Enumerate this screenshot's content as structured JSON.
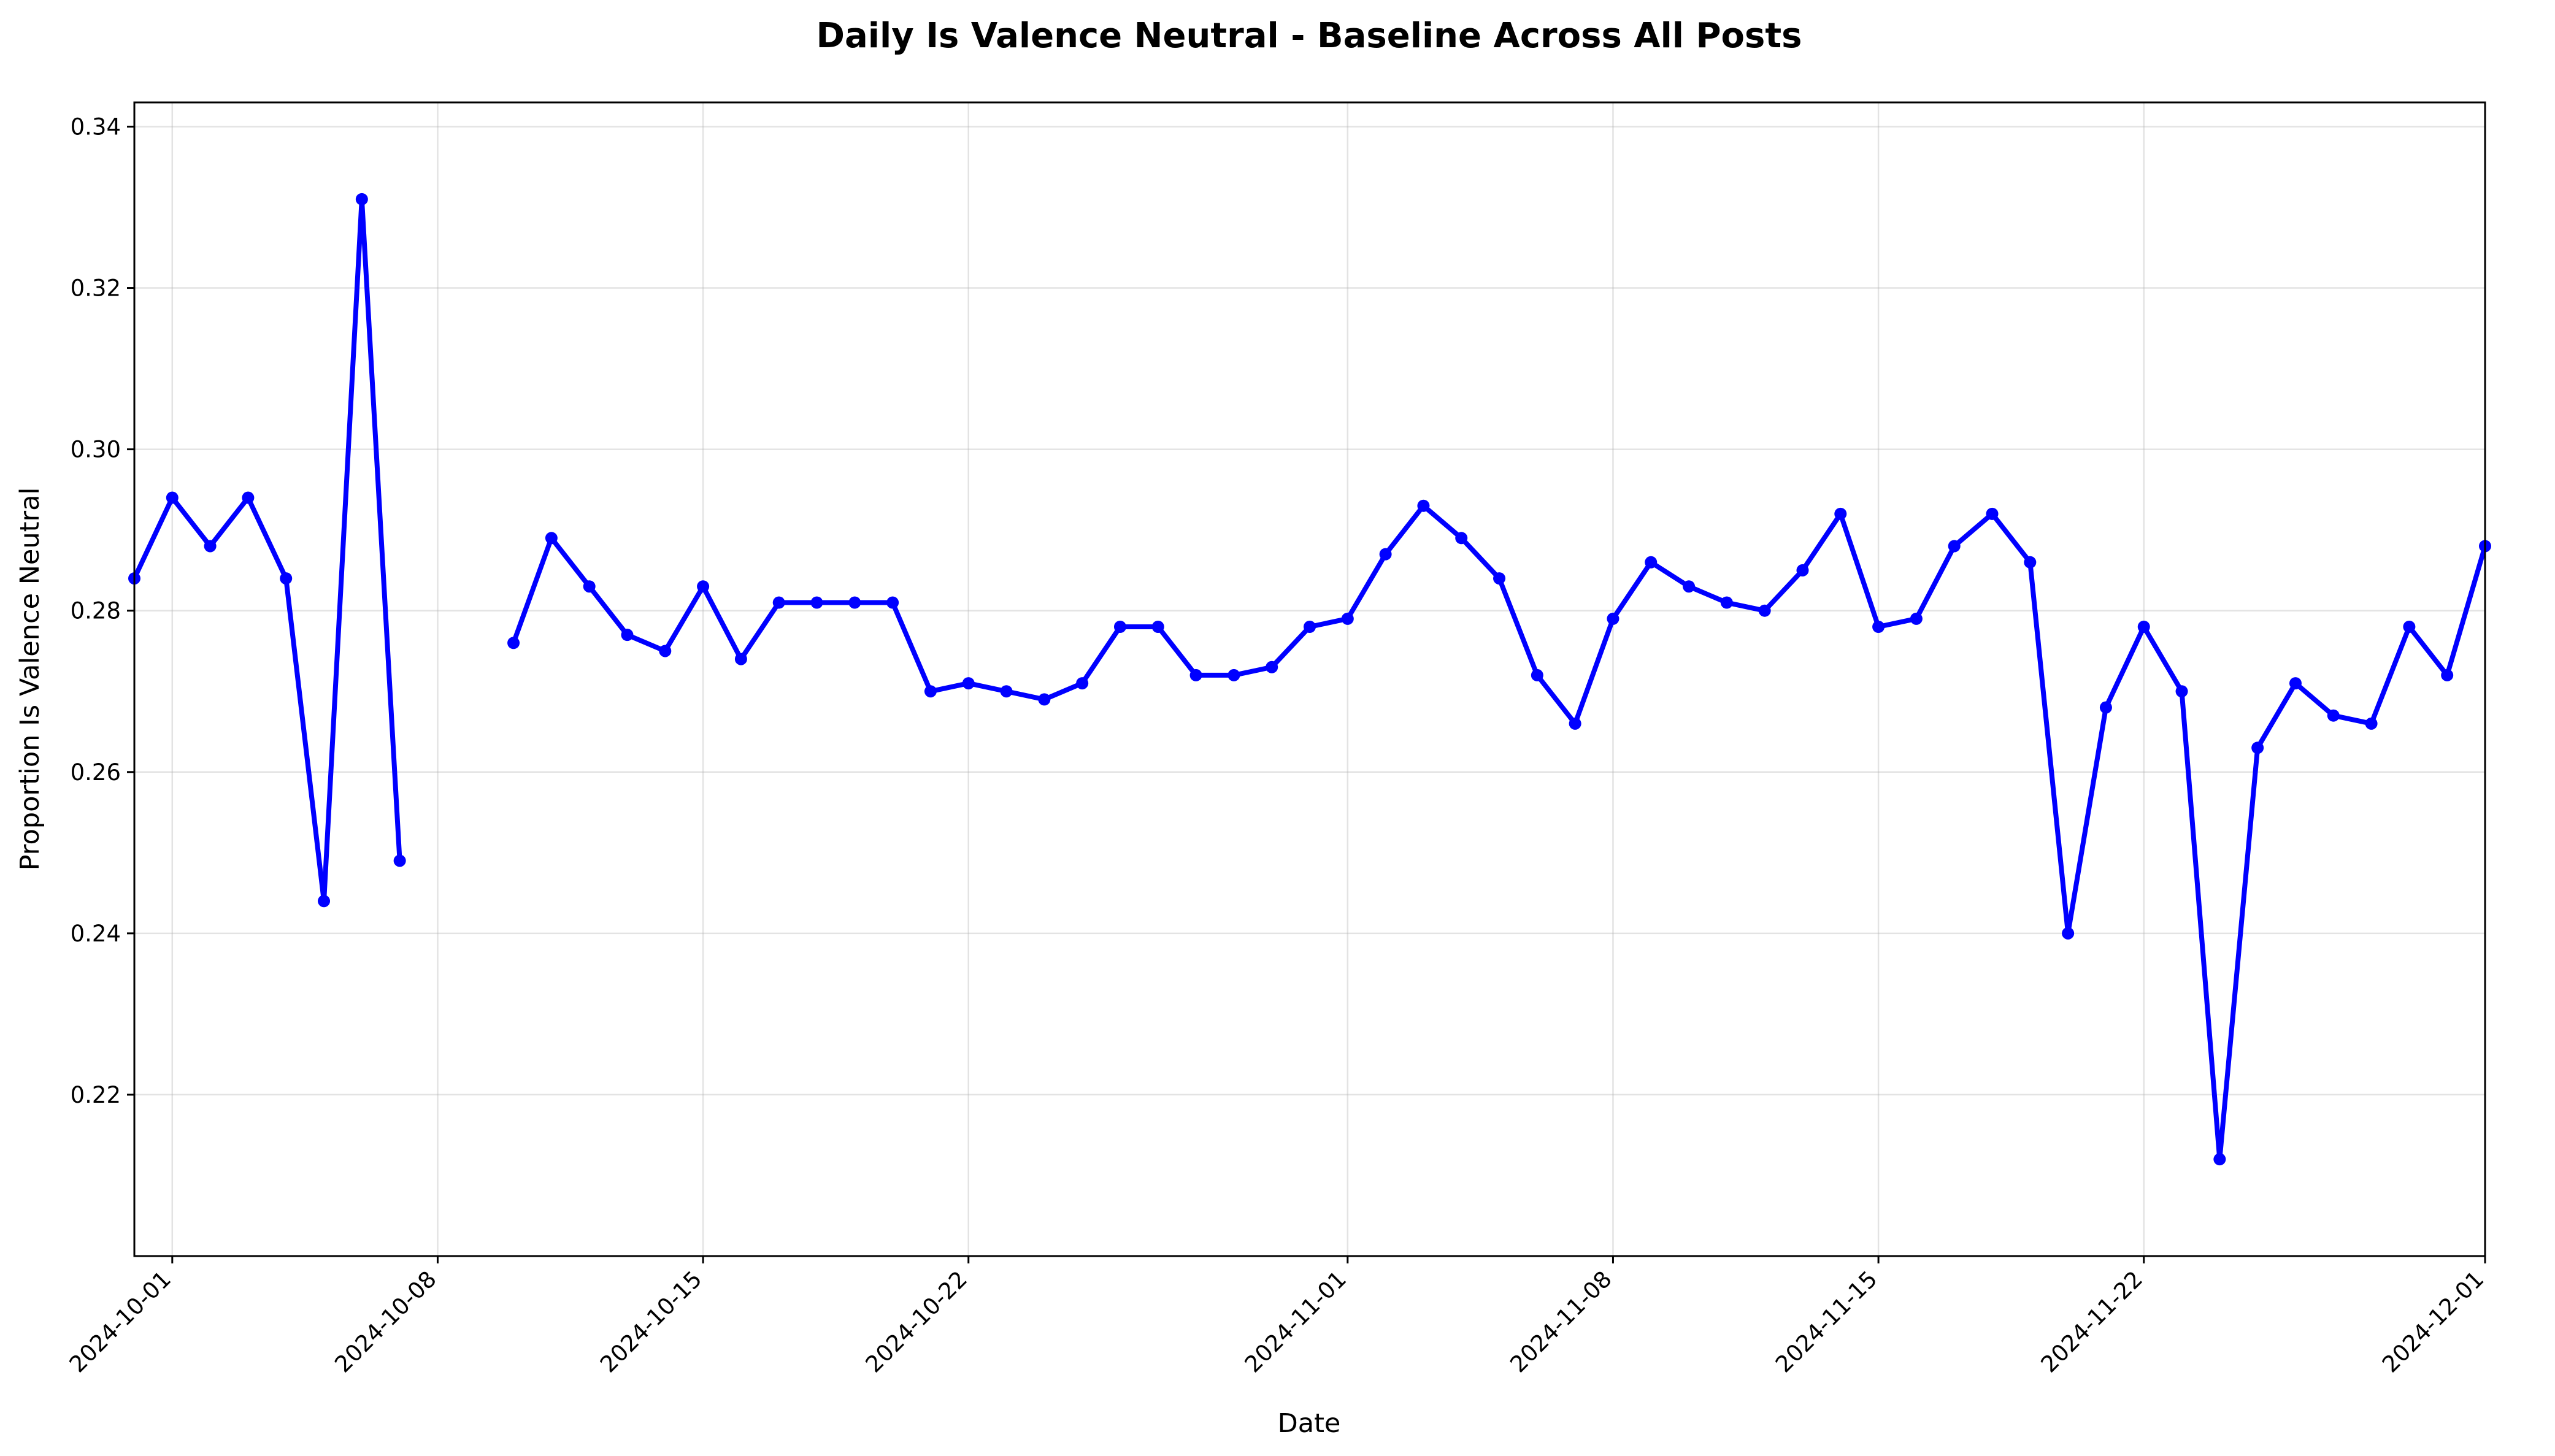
{
  "chart_data": {
    "type": "line",
    "title": "Daily Is Valence Neutral - Baseline Across All Posts",
    "xlabel": "Date",
    "ylabel": "Proportion Is Valence Neutral",
    "x_range": [
      "2024-09-30",
      "2024-12-01"
    ],
    "ylim": [
      0.2,
      0.343
    ],
    "grid": true,
    "line_color": "#0000ff",
    "x_ticks": [
      "2024-10-01",
      "2024-10-08",
      "2024-10-15",
      "2024-10-22",
      "2024-11-01",
      "2024-11-08",
      "2024-11-15",
      "2024-11-22",
      "2024-12-01"
    ],
    "y_ticks": [
      "0.22",
      "0.24",
      "0.26",
      "0.28",
      "0.30",
      "0.32",
      "0.34"
    ],
    "series": [
      {
        "x": [
          "2024-09-30",
          "2024-10-01",
          "2024-10-02",
          "2024-10-03",
          "2024-10-04",
          "2024-10-05",
          "2024-10-06",
          "2024-10-07",
          "2024-10-08",
          "2024-10-09",
          "2024-10-10",
          "2024-10-11",
          "2024-10-12",
          "2024-10-13",
          "2024-10-14",
          "2024-10-15",
          "2024-10-16",
          "2024-10-17",
          "2024-10-18",
          "2024-10-19",
          "2024-10-20",
          "2024-10-21",
          "2024-10-22",
          "2024-10-23",
          "2024-10-24",
          "2024-10-25",
          "2024-10-26",
          "2024-10-27",
          "2024-10-28",
          "2024-10-29",
          "2024-10-30",
          "2024-10-31",
          "2024-11-01",
          "2024-11-02",
          "2024-11-03",
          "2024-11-04",
          "2024-11-05",
          "2024-11-06",
          "2024-11-07",
          "2024-11-08",
          "2024-11-09",
          "2024-11-10",
          "2024-11-11",
          "2024-11-12",
          "2024-11-13",
          "2024-11-14",
          "2024-11-15",
          "2024-11-16",
          "2024-11-17",
          "2024-11-18",
          "2024-11-19",
          "2024-11-20",
          "2024-11-21",
          "2024-11-22",
          "2024-11-23",
          "2024-11-24",
          "2024-11-25",
          "2024-11-26",
          "2024-11-27",
          "2024-11-28",
          "2024-11-29",
          "2024-11-30",
          "2024-12-01"
        ],
        "y": [
          0.284,
          0.294,
          0.288,
          0.294,
          0.284,
          0.244,
          0.331,
          0.249,
          null,
          null,
          0.276,
          0.289,
          0.283,
          0.277,
          0.275,
          0.283,
          0.274,
          0.281,
          0.281,
          0.281,
          0.281,
          0.27,
          0.271,
          0.27,
          0.269,
          0.271,
          0.278,
          0.278,
          0.272,
          0.272,
          0.273,
          0.278,
          0.279,
          0.287,
          0.293,
          0.289,
          0.284,
          0.272,
          0.266,
          0.279,
          0.286,
          0.283,
          0.281,
          0.28,
          0.285,
          0.292,
          0.278,
          0.279,
          0.288,
          0.292,
          0.286,
          0.24,
          0.268,
          0.278,
          0.27,
          0.212,
          0.263,
          0.271,
          0.267,
          0.266,
          0.278,
          0.272,
          0.288
        ]
      }
    ]
  }
}
